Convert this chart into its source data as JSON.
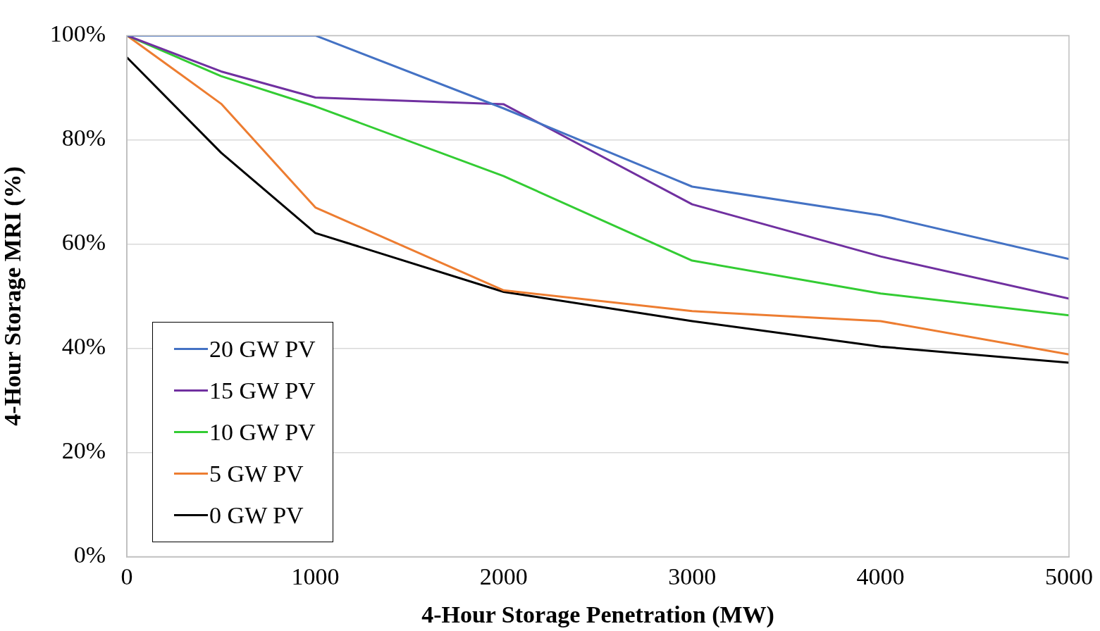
{
  "chart_data": {
    "type": "line",
    "xlabel": "4-Hour Storage Penetration (MW)",
    "ylabel": "4-Hour Storage MRI (%)",
    "x": [
      0,
      500,
      1000,
      2000,
      3000,
      4000,
      5000
    ],
    "xlim": [
      0,
      5000
    ],
    "xticks": [
      0,
      1000,
      2000,
      3000,
      4000,
      5000
    ],
    "ylim": [
      0,
      100
    ],
    "yticks": [
      {
        "value": 0,
        "label": "0%"
      },
      {
        "value": 20,
        "label": "20%"
      },
      {
        "value": 40,
        "label": "40%"
      },
      {
        "value": 60,
        "label": "60%"
      },
      {
        "value": 80,
        "label": "80%"
      },
      {
        "value": 100,
        "label": "100%"
      }
    ],
    "grid": "y",
    "legend": "bottom left",
    "marker": "none",
    "line_style": "solid",
    "series": [
      {
        "name": "20 GW PV",
        "color": "#4472c4",
        "values": [
          100,
          100,
          100,
          86,
          71,
          65.5,
          57.1
        ]
      },
      {
        "name": "15 GW PV",
        "color": "#7030a0",
        "values": [
          100,
          93.1,
          88.1,
          86.8,
          67.6,
          57.6,
          49.5
        ]
      },
      {
        "name": "10 GW PV",
        "color": "#33cc33",
        "values": [
          100,
          92.2,
          86.4,
          73,
          56.8,
          50.5,
          46.3
        ]
      },
      {
        "name": "5 GW PV",
        "color": "#ed7d31",
        "values": [
          100,
          86.9,
          67,
          51.1,
          47.1,
          45.2,
          38.8
        ]
      },
      {
        "name": "0 GW PV",
        "color": "#000000",
        "values": [
          95.8,
          77.5,
          62.1,
          50.8,
          45.2,
          40.3,
          37.2
        ]
      }
    ]
  }
}
